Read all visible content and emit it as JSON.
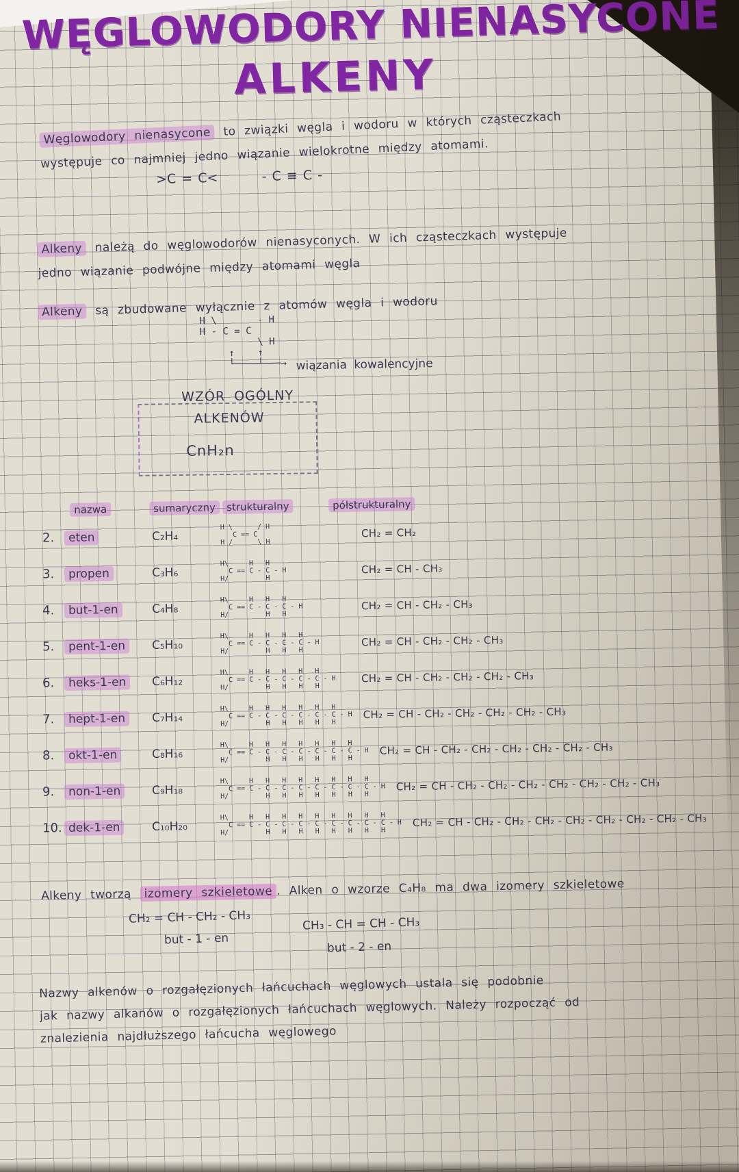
{
  "title": {
    "line1": "WĘGLOWODORY NIENASYCONE",
    "line2": "ALKENY"
  },
  "intro": {
    "highlight": "Węglowodory nienasycone",
    "rest_line1": " to związki węgla i wodoru w których cząsteczkach",
    "line2": "występuje co najmniej jedno wiązanie wielokrotne między atomami.",
    "formula_double": ">C = C<",
    "formula_triple": "- C ≡ C -"
  },
  "para_alkeny1": {
    "highlight": "Alkeny",
    "rest_line1": " należą do węglowodorów nienasyconych. W ich cząsteczkach występuje",
    "line2": "jedno wiązanie podwójne między atomami węgla"
  },
  "para_alkeny2": {
    "highlight": "Alkeny",
    "rest": " są zbudowane wyłącznie z atomów węgla i wodoru"
  },
  "ethene": {
    "lines": [
      "H \\       - H",
      "H - C = C",
      "          \\ H",
      "     ↑    ↑",
      "     └────┴───→"
    ],
    "label": "wiązania kowalencyjne"
  },
  "general_formula_box": {
    "line1": "WZÓR OGÓLNY",
    "line2": "ALKENÓW",
    "formula": "CnH₂n"
  },
  "table": {
    "headers": [
      "nazwa",
      "sumaryczny",
      "strukturalny",
      "półstrukturalny"
    ],
    "rows": [
      {
        "num": "2.",
        "name": "eten",
        "carbons": 2,
        "molecular": "C₂H₄",
        "semi": "CH₂ = CH₂"
      },
      {
        "num": "3.",
        "name": "propen",
        "carbons": 3,
        "molecular": "C₃H₆",
        "semi": "CH₂ = CH - CH₃"
      },
      {
        "num": "4.",
        "name": "but-1-en",
        "carbons": 4,
        "molecular": "C₄H₈",
        "semi": "CH₂ = CH - CH₂ - CH₃"
      },
      {
        "num": "5.",
        "name": "pent-1-en",
        "carbons": 5,
        "molecular": "C₅H₁₀",
        "semi": "CH₂ = CH - CH₂ - CH₂ - CH₃"
      },
      {
        "num": "6.",
        "name": "heks-1-en",
        "carbons": 6,
        "molecular": "C₆H₁₂",
        "semi": "CH₂ = CH - CH₂ - CH₂ - CH₂ - CH₃"
      },
      {
        "num": "7.",
        "name": "hept-1-en",
        "carbons": 7,
        "molecular": "C₇H₁₄",
        "semi": "CH₂ = CH - CH₂ - CH₂ - CH₂ - CH₂ - CH₃"
      },
      {
        "num": "8.",
        "name": "okt-1-en",
        "carbons": 8,
        "molecular": "C₈H₁₆",
        "semi": "CH₂ = CH - CH₂ - CH₂ - CH₂ - CH₂ - CH₂ - CH₃"
      },
      {
        "num": "9.",
        "name": "non-1-en",
        "carbons": 9,
        "molecular": "C₉H₁₈",
        "semi": "CH₂ = CH - CH₂ - CH₂ - CH₂ - CH₂ - CH₂ - CH₂ - CH₃"
      },
      {
        "num": "10.",
        "name": "dek-1-en",
        "carbons": 10,
        "molecular": "C₁₀H₂₀",
        "semi": "CH₂ = CH - CH₂ - CH₂ - CH₂ - CH₂ - CH₂ - CH₂ - CH₂ - CH₃"
      }
    ]
  },
  "isomers": {
    "pre": "Alkeny tworzą ",
    "highlight": "izomery szkieletowe",
    "post": ". Alken o wzorze C₄H₈ ma dwa izomery szkieletowe",
    "example1": {
      "formula": "CH₂ = CH - CH₂ - CH₃",
      "name": "but - 1 - en"
    },
    "example2": {
      "formula": "CH₃ - CH = CH - CH₃",
      "name": "but - 2 - en"
    }
  },
  "naming": {
    "line1": "Nazwy alkenów o rozgałęzionych łańcuchach węglowych ustala się podobnie",
    "line2": "jak nazwy alkanów o rozgałęzionych łańcuchach węglowych. Należy rozpocząć od",
    "line3": "znalezienia najdłuższego łańcucha węglowego"
  },
  "colors": {
    "marker_purple": "#7b1d9e",
    "highlight_pink": "#ca7ad6",
    "ink": "#31314a",
    "paper": "#e9e5da"
  }
}
